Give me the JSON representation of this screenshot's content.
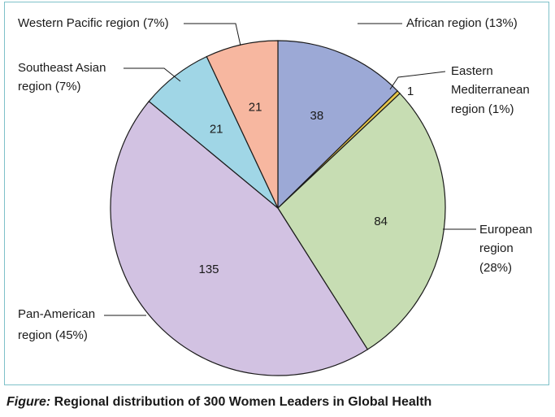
{
  "caption": {
    "prefix": "Figure:",
    "text": "Regional distribution of 300 Women Leaders in Global Health"
  },
  "chart_data": {
    "type": "pie",
    "title": "",
    "total": 300,
    "start": "12 o'clock, clockwise",
    "slices": [
      {
        "label": "African region (13%)",
        "value": 38,
        "color": "#9ca9d6"
      },
      {
        "label": "Eastern Mediterranean region (1%)",
        "value": 1,
        "color": "#e8c84a"
      },
      {
        "label": "European region (28%)",
        "value": 84,
        "color": "#c7ddb3"
      },
      {
        "label": "Pan-American region (45%)",
        "value": 135,
        "color": "#d2c2e2"
      },
      {
        "label": "Southeast Asian region (7%)",
        "value": 21,
        "color": "#a0d6e6"
      },
      {
        "label": "Western Pacific region (7%)",
        "value": 21,
        "color": "#f7b7a0"
      }
    ]
  }
}
